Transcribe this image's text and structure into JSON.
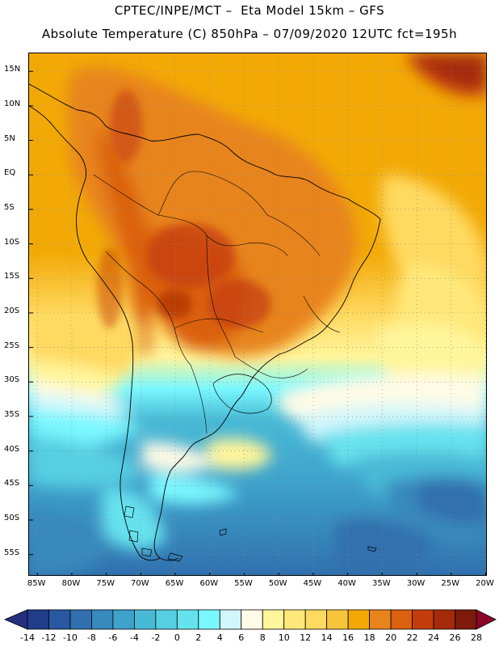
{
  "header": {
    "line1": "CPTEC/INPE/MCT –  Eta Model 15km – GFS",
    "line2": "Absolute Temperature (C) 850hPa – 07/09/2020 12UTC fct=195h"
  },
  "axes": {
    "latitudes": [
      {
        "value": 15,
        "label": "15N"
      },
      {
        "value": 10,
        "label": "10N"
      },
      {
        "value": 5,
        "label": "5N"
      },
      {
        "value": 0,
        "label": "EQ"
      },
      {
        "value": -5,
        "label": "5S"
      },
      {
        "value": -10,
        "label": "10S"
      },
      {
        "value": -15,
        "label": "15S"
      },
      {
        "value": -20,
        "label": "20S"
      },
      {
        "value": -25,
        "label": "25S"
      },
      {
        "value": -30,
        "label": "30S"
      },
      {
        "value": -35,
        "label": "35S"
      },
      {
        "value": -40,
        "label": "40S"
      },
      {
        "value": -45,
        "label": "45S"
      },
      {
        "value": -50,
        "label": "50S"
      },
      {
        "value": -55,
        "label": "55S"
      }
    ],
    "longitudes": [
      {
        "value": -85,
        "label": "85W"
      },
      {
        "value": -80,
        "label": "80W"
      },
      {
        "value": -75,
        "label": "75W"
      },
      {
        "value": -70,
        "label": "70W"
      },
      {
        "value": -65,
        "label": "65W"
      },
      {
        "value": -60,
        "label": "60W"
      },
      {
        "value": -55,
        "label": "55W"
      },
      {
        "value": -50,
        "label": "50W"
      },
      {
        "value": -45,
        "label": "45W"
      },
      {
        "value": -40,
        "label": "40W"
      },
      {
        "value": -35,
        "label": "35W"
      },
      {
        "value": -30,
        "label": "30W"
      },
      {
        "value": -25,
        "label": "25W"
      },
      {
        "value": -20,
        "label": "20W"
      }
    ],
    "lon_range": [
      -86.2,
      -19.7
    ],
    "lat_range": [
      -58.2,
      17.6
    ]
  },
  "colorbar": {
    "ticks": [
      "-14",
      "-12",
      "-10",
      "-8",
      "-6",
      "-4",
      "-2",
      "0",
      "2",
      "4",
      "6",
      "8",
      "10",
      "12",
      "14",
      "16",
      "18",
      "20",
      "22",
      "24",
      "26",
      "28"
    ],
    "colors": [
      "#1f3d8a",
      "#2a58a0",
      "#3070ae",
      "#3789be",
      "#3ea2cb",
      "#48bad6",
      "#57cfe2",
      "#66e2ee",
      "#7af8ff",
      "#d2f6fb",
      "#fffbe6",
      "#fff59b",
      "#ffe87a",
      "#ffd960",
      "#f8c53a",
      "#f2a906",
      "#e8841c",
      "#db6010",
      "#c53c0c",
      "#a52a0a",
      "#7d1a0c"
    ],
    "under_color": "#23307f",
    "over_color": "#8a0526"
  }
}
